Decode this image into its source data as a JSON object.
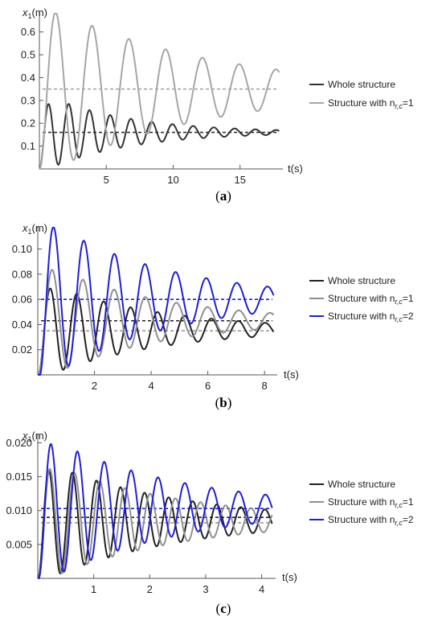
{
  "figure": {
    "panels": [
      {
        "caption": "(a)",
        "caption_letter": "a",
        "y_axis_label": "x",
        "y_axis_sub": "1",
        "y_axis_unit": "(m)",
        "x_axis_label": "t(s)"
      },
      {
        "caption": "(b)",
        "caption_letter": "b",
        "y_axis_label": "x",
        "y_axis_sub": "1",
        "y_axis_unit": "(m)",
        "x_axis_label": "t(s)"
      },
      {
        "caption": "(c)",
        "caption_letter": "c",
        "y_axis_label": "x",
        "y_axis_sub": "1",
        "y_axis_unit": "(m)",
        "x_axis_label": "t(s)"
      }
    ]
  },
  "chart_data": [
    {
      "type": "line",
      "title": "",
      "xlabel": "t(s)",
      "ylabel": "x1(m)",
      "xlim": [
        0,
        18.2
      ],
      "ylim": [
        0,
        0.68
      ],
      "xticks": [
        "5",
        "10",
        "15"
      ],
      "xtick_values": [
        5,
        10,
        15
      ],
      "yticks": [
        "0.1",
        "0.2",
        "0.3",
        "0.4",
        "0.5",
        "0.6"
      ],
      "ytick_values": [
        0.1,
        0.2,
        0.3,
        0.4,
        0.5,
        0.6
      ],
      "grid": false,
      "legend_position": "right",
      "series": [
        {
          "name": "Whole structure",
          "legend_label": "Whole structure",
          "legend_sub": "",
          "legend_suffix": "",
          "color": "#333333",
          "model": {
            "mean": 0.16,
            "amp": 0.16,
            "tpeak": 0.65,
            "period": 1.55,
            "decay": 0.16
          }
        },
        {
          "name": "Structure with n_r,c=1",
          "legend_label": "Structure with n",
          "legend_sub": "r,c",
          "legend_suffix": "=1",
          "color": "#a6a6a6",
          "model": {
            "mean": 0.35,
            "amp": 0.35,
            "tpeak": 1.2,
            "period": 2.75,
            "decay": 0.085
          }
        }
      ],
      "reference_lines": [
        {
          "y": 0.16,
          "color": "#333333"
        },
        {
          "y": 0.35,
          "color": "#a6a6a6"
        }
      ]
    },
    {
      "type": "line",
      "title": "",
      "xlabel": "t(s)",
      "ylabel": "x1(m)",
      "xlim": [
        0,
        8.45
      ],
      "ylim": [
        0,
        0.117
      ],
      "xticks": [
        "2",
        "4",
        "6",
        "8"
      ],
      "xtick_values": [
        2,
        4,
        6,
        8
      ],
      "yticks": [
        "0.02",
        "0.04",
        "0.06",
        "0.08",
        "0.10"
      ],
      "ytick_values": [
        0.02,
        0.04,
        0.06,
        0.08,
        0.1
      ],
      "grid": false,
      "legend_position": "right",
      "series": [
        {
          "name": "Whole structure",
          "legend_label": "Whole structure",
          "legend_sub": "",
          "legend_suffix": "",
          "color": "#222222",
          "model": {
            "mean": 0.036,
            "amp": 0.036,
            "tpeak": 0.43,
            "period": 0.95,
            "decay": 0.25
          }
        },
        {
          "name": "Structure with n_r,c=1",
          "legend_label": "Structure with n",
          "legend_sub": "r,c",
          "legend_suffix": "=1",
          "color": "#909090",
          "model": {
            "mean": 0.043,
            "amp": 0.043,
            "tpeak": 0.5,
            "period": 1.1,
            "decay": 0.25
          }
        },
        {
          "name": "Structure with n_r,c=2",
          "legend_label": "Structure with n",
          "legend_sub": "r,c",
          "legend_suffix": "=2",
          "color": "#1f1fd6",
          "model": {
            "mean": 0.06,
            "amp": 0.06,
            "tpeak": 0.55,
            "period": 1.08,
            "decay": 0.235
          }
        }
      ],
      "reference_lines": [
        {
          "y": 0.043,
          "color": "#222222"
        },
        {
          "y": 0.035,
          "color": "#909090"
        },
        {
          "y": 0.06,
          "color": "#1f1fd6"
        }
      ]
    },
    {
      "type": "line",
      "title": "",
      "xlabel": "t(s)",
      "ylabel": "x1(m)",
      "xlim": [
        0,
        4.25
      ],
      "ylim": [
        0,
        0.021
      ],
      "xticks": [
        "1",
        "2",
        "3",
        "4"
      ],
      "xtick_values": [
        1,
        2,
        3,
        4
      ],
      "yticks": [
        "0.005",
        "0.010",
        "0.015",
        "0.020"
      ],
      "ytick_values": [
        0.005,
        0.01,
        0.015,
        0.02
      ],
      "grid": false,
      "legend_position": "right",
      "series": [
        {
          "name": "Whole structure",
          "legend_label": "Whole structure",
          "legend_sub": "",
          "legend_suffix": "",
          "color": "#222222",
          "model": {
            "mean": 0.0085,
            "amp": 0.0085,
            "tpeak": 0.19,
            "period": 0.43,
            "decay": 0.42
          }
        },
        {
          "name": "Structure with n_r,c=1",
          "legend_label": "Structure with n",
          "legend_sub": "r,c",
          "legend_suffix": "=1",
          "color": "#909090",
          "model": {
            "mean": 0.0085,
            "amp": 0.0085,
            "tpeak": 0.21,
            "period": 0.45,
            "decay": 0.42
          }
        },
        {
          "name": "Structure with n_r,c=2",
          "legend_label": "Structure with n",
          "legend_sub": "r,c",
          "legend_suffix": "=2",
          "color": "#1f1fd6",
          "model": {
            "mean": 0.0103,
            "amp": 0.0103,
            "tpeak": 0.23,
            "period": 0.48,
            "decay": 0.42
          }
        }
      ],
      "reference_lines": [
        {
          "y": 0.009,
          "color": "#222222"
        },
        {
          "y": 0.0082,
          "color": "#909090"
        },
        {
          "y": 0.0103,
          "color": "#1f1fd6"
        }
      ]
    }
  ]
}
